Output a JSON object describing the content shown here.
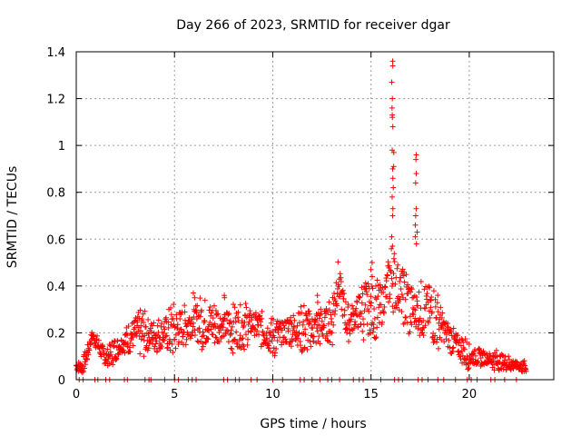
{
  "chart_data": {
    "type": "scatter",
    "title": "Day 266 of 2023, SRMTID for receiver dgar",
    "xlabel": "GPS time / hours",
    "ylabel": "SRMTID / TECUs",
    "xlim": [
      0,
      24.3
    ],
    "ylim": [
      0,
      1.4
    ],
    "xticks": [
      0,
      5,
      10,
      15,
      20
    ],
    "yticks": [
      0,
      0.2,
      0.4,
      0.6,
      0.8,
      1,
      1.2,
      1.4
    ],
    "xtick_labels": [
      "0",
      "5",
      "10",
      "15",
      "20"
    ],
    "ytick_labels": [
      "0",
      "0.2",
      "0.4",
      "0.6",
      "0.8",
      "1",
      "1.2",
      "1.4"
    ],
    "grid": true,
    "marker": "+",
    "color": "#ff0000",
    "series": [
      {
        "name": "SRMTID",
        "profile": [
          {
            "x": 0.0,
            "y": 0.06,
            "spread": 0.02
          },
          {
            "x": 0.3,
            "y": 0.05,
            "spread": 0.02
          },
          {
            "x": 0.6,
            "y": 0.12,
            "spread": 0.04
          },
          {
            "x": 0.8,
            "y": 0.19,
            "spread": 0.03
          },
          {
            "x": 1.1,
            "y": 0.15,
            "spread": 0.03
          },
          {
            "x": 1.5,
            "y": 0.09,
            "spread": 0.03
          },
          {
            "x": 2.0,
            "y": 0.13,
            "spread": 0.04
          },
          {
            "x": 3.0,
            "y": 0.2,
            "spread": 0.07
          },
          {
            "x": 4.0,
            "y": 0.19,
            "spread": 0.07
          },
          {
            "x": 5.0,
            "y": 0.21,
            "spread": 0.08
          },
          {
            "x": 6.0,
            "y": 0.25,
            "spread": 0.08
          },
          {
            "x": 7.0,
            "y": 0.24,
            "spread": 0.08
          },
          {
            "x": 8.0,
            "y": 0.22,
            "spread": 0.08
          },
          {
            "x": 9.0,
            "y": 0.24,
            "spread": 0.07
          },
          {
            "x": 10.0,
            "y": 0.18,
            "spread": 0.06
          },
          {
            "x": 11.0,
            "y": 0.22,
            "spread": 0.07
          },
          {
            "x": 12.0,
            "y": 0.21,
            "spread": 0.08
          },
          {
            "x": 13.0,
            "y": 0.25,
            "spread": 0.09
          },
          {
            "x": 13.3,
            "y": 0.43,
            "spread": 0.07
          },
          {
            "x": 13.8,
            "y": 0.24,
            "spread": 0.07
          },
          {
            "x": 14.5,
            "y": 0.3,
            "spread": 0.09
          },
          {
            "x": 15.5,
            "y": 0.3,
            "spread": 0.1
          },
          {
            "x": 16.0,
            "y": 0.45,
            "spread": 0.12
          },
          {
            "x": 16.5,
            "y": 0.38,
            "spread": 0.08
          },
          {
            "x": 17.0,
            "y": 0.3,
            "spread": 0.12
          },
          {
            "x": 18.0,
            "y": 0.3,
            "spread": 0.1
          },
          {
            "x": 19.0,
            "y": 0.18,
            "spread": 0.06
          },
          {
            "x": 20.0,
            "y": 0.1,
            "spread": 0.04
          },
          {
            "x": 21.0,
            "y": 0.09,
            "spread": 0.03
          },
          {
            "x": 22.0,
            "y": 0.07,
            "spread": 0.03
          },
          {
            "x": 22.9,
            "y": 0.05,
            "spread": 0.02
          }
        ],
        "peaks": [
          {
            "x": 16.1,
            "values": [
              1.36,
              1.34,
              1.27,
              1.2,
              1.16,
              1.13,
              1.12,
              1.08,
              0.98,
              0.97,
              0.91,
              0.9,
              0.86,
              0.82,
              0.78,
              0.73,
              0.7,
              0.61,
              0.57
            ]
          },
          {
            "x": 17.3,
            "values": [
              0.96,
              0.94,
              0.88,
              0.84,
              0.73,
              0.7,
              0.66,
              0.63,
              0.61,
              0.58
            ]
          },
          {
            "x": 15.0,
            "values": [
              0.5,
              0.47,
              0.44
            ]
          },
          {
            "x": 6.0,
            "values": [
              0.37,
              0.35
            ]
          },
          {
            "x": 7.5,
            "values": [
              0.36,
              0.35
            ]
          },
          {
            "x": 12.3,
            "values": [
              0.36,
              0.33
            ]
          }
        ],
        "dropouts_x": [
          0.15,
          0.35,
          0.95,
          1.1,
          1.5,
          1.7,
          2.45,
          2.6,
          3.5,
          3.7,
          3.8,
          4.5,
          5.0,
          5.2,
          5.7,
          5.9,
          6.1,
          7.5,
          7.7,
          8.1,
          8.3,
          8.9,
          9.2,
          10.0,
          10.5,
          11.4,
          11.6,
          12.0,
          12.4,
          12.8,
          13.0,
          13.4,
          14.1,
          14.4,
          14.6,
          15.5,
          16.2,
          16.4,
          16.6,
          17.4,
          17.6,
          17.9,
          18.4,
          18.7,
          19.3,
          19.9,
          20.1,
          20.4,
          21.1,
          21.3,
          21.8,
          22.4
        ]
      }
    ]
  }
}
